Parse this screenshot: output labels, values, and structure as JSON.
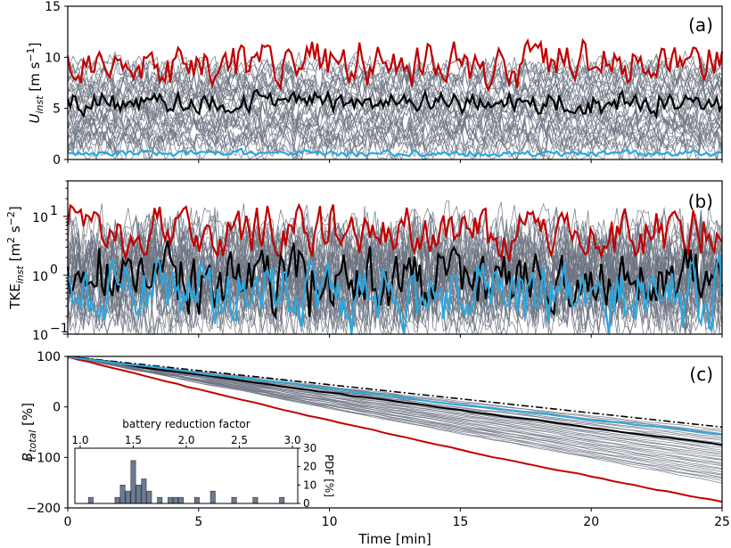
{
  "colors": {
    "ensemble": "#6b7280",
    "max": "#c00000",
    "mean": "#000000",
    "min": "#2aa8e0",
    "theory": "#000000",
    "hist": "#6b7a94"
  },
  "chart_data": [
    {
      "id": "a",
      "type": "line",
      "panel_label": "(a)",
      "ylabel": "U_inst [m s^-1]",
      "ylabel_display": {
        "main": "U",
        "sub": "inst",
        "unit_pre": " [m s",
        "unit_sup": "−1",
        "unit_post": "]"
      },
      "xlim": [
        0,
        25
      ],
      "ylim": [
        0,
        15
      ],
      "yticks": [
        "0",
        "5",
        "10",
        "15"
      ],
      "series": [
        {
          "name": "max",
          "role": "max",
          "level": 9.5,
          "amp": 1.6
        },
        {
          "name": "mean",
          "role": "mean",
          "level": 5.6,
          "amp": 0.9
        },
        {
          "name": "min",
          "role": "min",
          "level": 0.6,
          "amp": 0.25
        }
      ],
      "ensemble": {
        "count": 36,
        "level_range": [
          1.0,
          9.0
        ],
        "amp": 1.1
      }
    },
    {
      "id": "b",
      "type": "line",
      "panel_label": "(b)",
      "ylabel": "TKE_inst [m^2 s^-2]",
      "ylabel_display": {
        "main": "TKE",
        "sub": "inst",
        "unit_pre": " [m",
        "unit_sup": "2",
        "unit_mid": " s",
        "unit_sup2": "−2",
        "unit_post": "]"
      },
      "xlim": [
        0,
        25
      ],
      "ylim": [
        0.1,
        40
      ],
      "yscale": "log",
      "yticks": [
        {
          "value": 0.1,
          "base": "10",
          "exp": "−1"
        },
        {
          "value": 1,
          "base": "10",
          "exp": "0"
        },
        {
          "value": 10,
          "base": "10",
          "exp": "1"
        }
      ],
      "series": [
        {
          "name": "max",
          "role": "max",
          "level": 5.5,
          "amp": 0.35
        },
        {
          "name": "mean",
          "role": "mean",
          "level": 0.8,
          "amp": 0.45
        },
        {
          "name": "min",
          "role": "min",
          "level": 0.45,
          "amp": 0.45
        }
      ],
      "ensemble": {
        "count": 36,
        "level_range": [
          0.25,
          4.0
        ],
        "amp": 0.45
      }
    },
    {
      "id": "c",
      "type": "line",
      "panel_label": "(c)",
      "ylabel": "B_total [%]",
      "ylabel_display": {
        "main": "B",
        "sub": "total",
        "unit_pre": " [%]"
      },
      "xlabel": "Time [min]",
      "xlim": [
        0,
        25
      ],
      "ylim": [
        -200,
        100
      ],
      "xticks": [
        "0",
        "5",
        "10",
        "15",
        "20",
        "25"
      ],
      "yticks": [
        "−200",
        "−100",
        "0",
        "100"
      ],
      "series": [
        {
          "name": "theoretical",
          "role": "theory",
          "x": [
            0,
            25
          ],
          "y": [
            100,
            -40
          ]
        },
        {
          "name": "max",
          "role": "max",
          "x": [
            0,
            25
          ],
          "y": [
            100,
            -187
          ]
        },
        {
          "name": "mean",
          "role": "mean",
          "x": [
            0,
            25
          ],
          "y": [
            100,
            -75
          ]
        },
        {
          "name": "min",
          "role": "min",
          "x": [
            0,
            25
          ],
          "y": [
            100,
            -55
          ]
        }
      ],
      "ensemble": {
        "count": 30,
        "end_range": [
          -150,
          -45
        ]
      },
      "inset": {
        "type": "bar",
        "title": "battery reduction factor",
        "xlabel": "battery reduction factor",
        "ylabel": "PDF [%]",
        "xlim": [
          0.95,
          3.05
        ],
        "ylim": [
          0,
          30
        ],
        "xticks": [
          "1.0",
          "1.5",
          "2.0",
          "2.5",
          "3.0"
        ],
        "yticks": [
          "0",
          "10",
          "20",
          "30"
        ],
        "bins": [
          1.1,
          1.35,
          1.4,
          1.45,
          1.5,
          1.55,
          1.6,
          1.65,
          1.75,
          1.85,
          1.9,
          1.95,
          2.1,
          2.25,
          2.45,
          2.65,
          2.9
        ],
        "values": [
          3.3,
          3.3,
          10,
          6.7,
          23.3,
          10,
          13.3,
          6.7,
          3.3,
          3.3,
          3.3,
          3.3,
          3.3,
          6.7,
          3.3,
          3.3,
          3.3
        ]
      }
    }
  ]
}
